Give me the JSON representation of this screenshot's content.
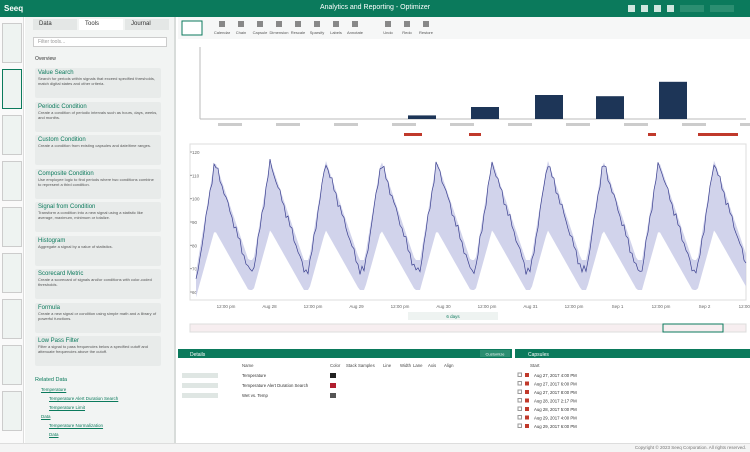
{
  "header": {
    "logo": "Seeq",
    "title": "Analytics and Reporting - Optimizer"
  },
  "left_panel": {
    "tabs": [
      "Data",
      "Tools",
      "Journal"
    ],
    "search": "Filter tools...",
    "section": "Overview",
    "tools": [
      {
        "name": "Value Search",
        "description": "Search for periods within signals that exceed specified thresholds, match digital states and other criteria."
      },
      {
        "name": "Periodic Condition",
        "description": "Create a condition of periodic intervals such as hours, days, weeks, and months."
      },
      {
        "name": "Custom Condition",
        "description": "Create a condition from existing capsules and date/time ranges."
      },
      {
        "name": "Composite Condition",
        "description": "Use employee logic to find periods where two conditions combine to represent a third condition."
      },
      {
        "name": "Signal from Condition",
        "description": "Transform a condition into a new signal using a statistic like average, maximum, minimum or totalize."
      },
      {
        "name": "Histogram",
        "description": "Aggregate a signal by a value of statistics."
      },
      {
        "name": "Scorecard Metric",
        "description": "Create a scorecard of signals and/or conditions with color-coded thresholds."
      },
      {
        "name": "Formula",
        "description": "Create a new signal or condition using simple math and a library of powerful functions."
      },
      {
        "name": "Low Pass Filter",
        "description": "Filter a signal to pass frequencies below a specified cutoff and attenuate frequencies above the cutoff."
      }
    ],
    "related_data": {
      "title": "Related Data",
      "items": [
        "Temperature",
        "Temperature Alert Duration Search",
        "Temperature Limit",
        "Data",
        "Temperature Normalization",
        "Data"
      ]
    }
  },
  "toolbar": [
    "Calendar",
    "Chain",
    "Capsule",
    "Dimension",
    "Rescale",
    "Sparsify",
    "Labels",
    "Annotate",
    "Undo",
    "Redo",
    "Restore"
  ],
  "capsule_chart": {
    "values": [
      3,
      10,
      20,
      19,
      31
    ],
    "ylim": [
      0,
      60
    ],
    "color": "#1d3557"
  },
  "trend": {
    "yticks": [
      120,
      110,
      100,
      90,
      80,
      70,
      60
    ],
    "xticks": [
      "12:00 pm",
      "Aug 28",
      "12:00 pm",
      "Aug 29",
      "12:00 pm",
      "Aug 30",
      "12:00 pm",
      "Aug 31",
      "12:00 pm",
      "Sep 1",
      "12:00 pm",
      "Sep 2",
      "12:00 pm"
    ],
    "duration": "6 days"
  },
  "details": {
    "title": "Details",
    "customize": "Customize",
    "columns": [
      "Name",
      "Color",
      "Stack",
      "Samples",
      "Line",
      "Width",
      "Lane",
      "Axis",
      "Align"
    ],
    "rows": [
      "Temperature",
      "Temperature Alert Duration Search",
      "Wet vs. Temp"
    ]
  },
  "capsules": {
    "title": "Capsules",
    "column": "Start",
    "rows": [
      "Aug 27, 2017 4:00 PM",
      "Aug 27, 2017 6:00 PM",
      "Aug 27, 2017 8:00 PM",
      "Aug 28, 2017 2:17 PM",
      "Aug 28, 2017 5:00 PM",
      "Aug 29, 2017 4:00 PM",
      "Aug 29, 2017 6:00 PM"
    ]
  },
  "footer": {
    "right": "Copyright © 2023 Seeq Corporation. All rights reserved."
  }
}
